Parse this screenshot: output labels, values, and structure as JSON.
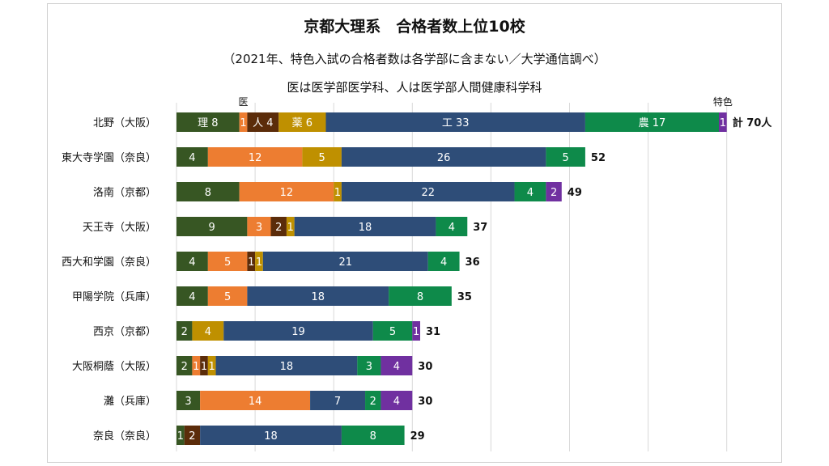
{
  "titles": {
    "main": "京都大理系　合格者数上位10校",
    "sub": "（2021年、特色入試の合格者数は各学部に含まない／大学通信調べ）",
    "note": "医は医学部医学科、人は医学部人間健康科学科"
  },
  "chart_data": {
    "type": "bar",
    "orientation": "horizontal",
    "stacked": true,
    "title": "京都大理系　合格者数上位10校",
    "xlim": [
      0,
      70
    ],
    "grid": true,
    "categories": [
      "北野（大阪）",
      "東大寺学園（奈良）",
      "洛南（京都）",
      "天王寺（大阪）",
      "西大和学園（奈良）",
      "甲陽学院（兵庫）",
      "西京（京都）",
      "大阪桐蔭（大阪）",
      "灘（兵庫）",
      "奈良（奈良）"
    ],
    "series": [
      {
        "name": "理",
        "color": "#375623",
        "values": [
          8,
          4,
          8,
          9,
          4,
          4,
          2,
          2,
          3,
          1
        ]
      },
      {
        "name": "医",
        "color": "#ed7d31",
        "values": [
          1,
          12,
          12,
          3,
          5,
          5,
          0,
          1,
          14,
          0
        ]
      },
      {
        "name": "人",
        "color": "#5b2c0a",
        "values": [
          4,
          0,
          0,
          2,
          1,
          0,
          0,
          1,
          0,
          2
        ]
      },
      {
        "name": "薬",
        "color": "#bf9000",
        "values": [
          6,
          5,
          1,
          1,
          1,
          0,
          4,
          1,
          0,
          0
        ]
      },
      {
        "name": "工",
        "color": "#2e4d78",
        "values": [
          33,
          26,
          22,
          18,
          21,
          18,
          19,
          18,
          7,
          18
        ]
      },
      {
        "name": "農",
        "color": "#0e8a4a",
        "values": [
          17,
          5,
          4,
          4,
          4,
          8,
          5,
          3,
          2,
          8
        ]
      },
      {
        "name": "特色",
        "color": "#7030a0",
        "values": [
          1,
          0,
          2,
          0,
          0,
          0,
          1,
          4,
          4,
          0
        ]
      }
    ],
    "totals": [
      70,
      52,
      49,
      37,
      36,
      35,
      31,
      30,
      30,
      29
    ],
    "first_row_labels": [
      "理 8",
      "1",
      "人 4",
      "薬 6",
      "工 33",
      "農 17",
      "1"
    ],
    "first_total_label": "計 70人",
    "annotations": [
      {
        "text": "医",
        "series": "医"
      },
      {
        "text": "特色",
        "series": "特色"
      }
    ]
  }
}
